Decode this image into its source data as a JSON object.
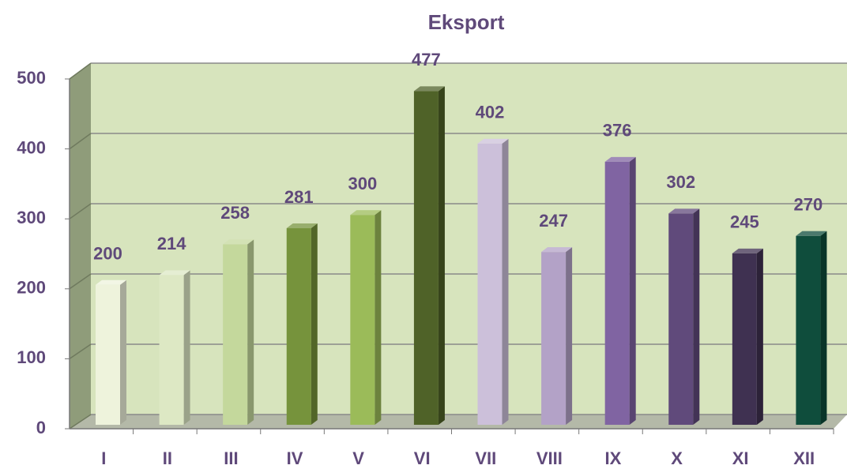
{
  "chart_data": {
    "type": "bar",
    "title": "Eksport",
    "categories": [
      "I",
      "II",
      "III",
      "IV",
      "V",
      "VI",
      "VII",
      "VIII",
      "IX",
      "X",
      "XI",
      "XII"
    ],
    "values": [
      200,
      214,
      258,
      281,
      300,
      477,
      402,
      247,
      376,
      302,
      245,
      270
    ],
    "colors": [
      "#eef3dc",
      "#dde8c4",
      "#c4d89c",
      "#76933c",
      "#9bbb59",
      "#4f6228",
      "#ccc0da",
      "#b3a2c7",
      "#8064a2",
      "#604a7b",
      "#3f3151",
      "#0f4d3c"
    ],
    "ylim": [
      0,
      500
    ],
    "yticks": [
      0,
      100,
      200,
      300,
      400,
      500
    ],
    "grid": true
  }
}
